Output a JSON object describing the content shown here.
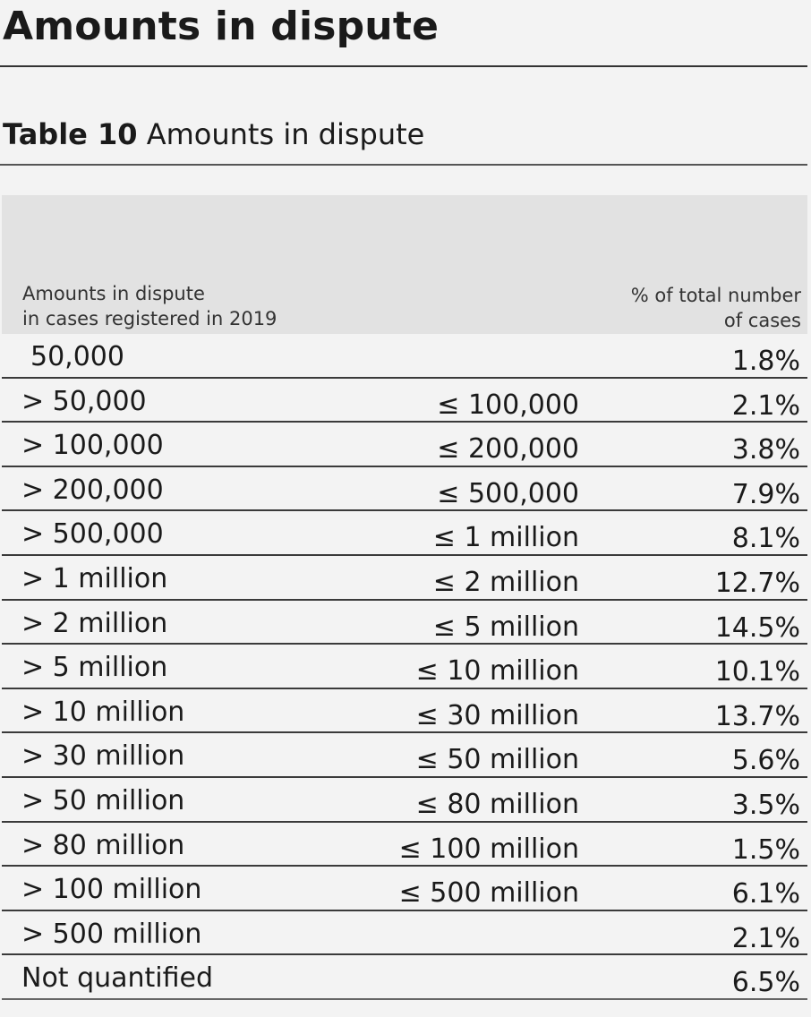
{
  "page": {
    "heading": "Amounts in dispute"
  },
  "table": {
    "caption_number": "Table 10",
    "caption_title": "Amounts in dispute",
    "header": {
      "col1_line1": "Amounts in dispute",
      "col1_line2": "in cases registered in 2019",
      "col3_line1": "% of total number",
      "col3_line2": "of cases"
    },
    "rows": [
      {
        "lower": "50,000",
        "upper": "",
        "percent": "1.8%"
      },
      {
        "lower": "> 50,000",
        "upper": "≤ 100,000",
        "percent": "2.1%"
      },
      {
        "lower": "> 100,000",
        "upper": "≤ 200,000",
        "percent": "3.8%"
      },
      {
        "lower": "> 200,000",
        "upper": "≤ 500,000",
        "percent": "7.9%"
      },
      {
        "lower": "> 500,000",
        "upper": "≤ 1 million",
        "percent": "8.1%"
      },
      {
        "lower": "> 1 million",
        "upper": "≤ 2 million",
        "percent": "12.7%"
      },
      {
        "lower": "> 2 million",
        "upper": "≤ 5 million",
        "percent": "14.5%"
      },
      {
        "lower": "> 5 million",
        "upper": "≤ 10 million",
        "percent": "10.1%"
      },
      {
        "lower": "> 10 million",
        "upper": "≤ 30 million",
        "percent": "13.7%"
      },
      {
        "lower": "> 30 million",
        "upper": "≤ 50 million",
        "percent": "5.6%"
      },
      {
        "lower": "> 50 million",
        "upper": "≤ 80 million",
        "percent": "3.5%"
      },
      {
        "lower": "> 80 million",
        "upper": "≤ 100 million",
        "percent": "1.5%"
      },
      {
        "lower": "> 100 million",
        "upper": "≤ 500 million",
        "percent": "6.1%"
      },
      {
        "lower": "> 500 million",
        "upper": "",
        "percent": "2.1%"
      },
      {
        "lower": "Not quantified",
        "upper": "",
        "percent": "6.5%"
      }
    ]
  }
}
